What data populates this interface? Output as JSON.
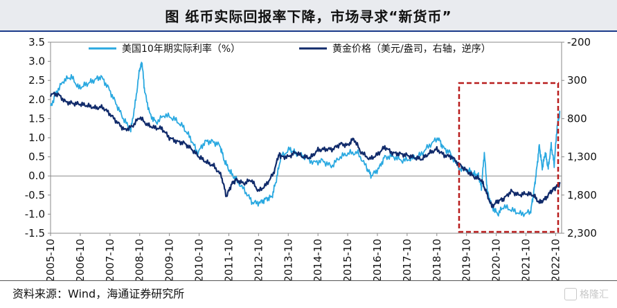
{
  "title": "图  纸币实际回报率下降，市场寻求“新货币”",
  "source": "资料来源：Wind，海通证券研究所",
  "watermark": "格隆汇",
  "colors": {
    "real_rate": "#29a8e0",
    "gold": "#102a6a",
    "box": "#b81c1c"
  },
  "chart_data": {
    "type": "line",
    "x_ticks": [
      "2005-10",
      "2006-10",
      "2007-10",
      "2008-10",
      "2009-10",
      "2010-10",
      "2011-10",
      "2012-10",
      "2013-10",
      "2014-10",
      "2015-10",
      "2016-10",
      "2017-10",
      "2018-10",
      "2019-10",
      "2020-10",
      "2021-10",
      "2022-10"
    ],
    "x_range": [
      2005.75,
      2022.95
    ],
    "y_left": {
      "ticks": [
        "3.5",
        "3.0",
        "2.5",
        "2.0",
        "1.5",
        "1.0",
        "0.5",
        "0.0",
        "-0.5",
        "-1.0",
        "-1.5"
      ],
      "range": [
        -1.5,
        3.5
      ]
    },
    "y_right": {
      "ticks": [
        "-200",
        "300",
        "800",
        "1,300",
        "1,800",
        "2,300"
      ],
      "range": [
        -200,
        2300
      ],
      "inverted": true
    },
    "highlight_box": {
      "x_from": "2019-07",
      "x_to": "2022-11"
    },
    "series": [
      {
        "name": "美国10年期实际利率（%）",
        "axis": "left",
        "x": [
          2005.75,
          2005.95,
          2006.2,
          2006.45,
          2006.7,
          2006.95,
          2007.2,
          2007.45,
          2007.7,
          2007.95,
          2008.2,
          2008.45,
          2008.6,
          2008.75,
          2008.83,
          2008.92,
          2009.1,
          2009.3,
          2009.6,
          2009.9,
          2010.2,
          2010.45,
          2010.7,
          2010.95,
          2011.2,
          2011.45,
          2011.6,
          2011.8,
          2012.0,
          2012.3,
          2012.55,
          2012.8,
          2013.0,
          2013.2,
          2013.35,
          2013.5,
          2013.8,
          2014.0,
          2014.3,
          2014.6,
          2014.9,
          2015.2,
          2015.5,
          2015.8,
          2016.1,
          2016.4,
          2016.55,
          2016.8,
          2017.0,
          2017.3,
          2017.6,
          2017.9,
          2018.2,
          2018.5,
          2018.8,
          2018.95,
          2019.2,
          2019.5,
          2019.8,
          2020.0,
          2020.15,
          2020.25,
          2020.35,
          2020.45,
          2020.6,
          2020.8,
          2021.0,
          2021.3,
          2021.6,
          2021.9,
          2022.0,
          2022.1,
          2022.2,
          2022.3,
          2022.4,
          2022.5,
          2022.6,
          2022.7,
          2022.8,
          2022.9
        ],
        "y": [
          1.8,
          2.2,
          2.5,
          2.6,
          2.3,
          2.4,
          2.5,
          2.6,
          2.3,
          1.9,
          1.5,
          1.2,
          1.9,
          2.8,
          2.95,
          2.2,
          1.6,
          1.4,
          1.6,
          1.5,
          1.3,
          1.0,
          0.6,
          0.9,
          0.9,
          0.8,
          0.4,
          0.1,
          -0.1,
          -0.4,
          -0.7,
          -0.7,
          -0.6,
          -0.55,
          -0.1,
          0.5,
          0.7,
          0.6,
          0.5,
          0.35,
          0.4,
          0.25,
          0.5,
          0.6,
          0.6,
          0.2,
          0.0,
          0.2,
          0.5,
          0.5,
          0.4,
          0.45,
          0.55,
          0.8,
          1.0,
          0.75,
          0.6,
          0.2,
          0.15,
          0.05,
          0.0,
          -0.3,
          0.6,
          -0.4,
          -0.8,
          -1.0,
          -0.8,
          -0.9,
          -1.0,
          -0.95,
          -0.5,
          0.1,
          0.8,
          0.2,
          0.6,
          0.2,
          0.8,
          0.3,
          1.3,
          1.7
        ]
      },
      {
        "name": "黄金价格（美元/盎司，右轴，逆序）",
        "axis": "right",
        "x": [
          2005.75,
          2006.0,
          2006.25,
          2006.5,
          2006.75,
          2007.0,
          2007.25,
          2007.5,
          2007.75,
          2008.0,
          2008.25,
          2008.5,
          2008.75,
          2009.0,
          2009.25,
          2009.5,
          2009.75,
          2010.0,
          2010.25,
          2010.5,
          2010.75,
          2011.0,
          2011.25,
          2011.5,
          2011.67,
          2011.85,
          2012.0,
          2012.25,
          2012.5,
          2012.75,
          2013.0,
          2013.25,
          2013.45,
          2013.5,
          2013.75,
          2014.0,
          2014.25,
          2014.5,
          2014.75,
          2015.0,
          2015.25,
          2015.5,
          2015.75,
          2015.95,
          2016.2,
          2016.5,
          2016.75,
          2017.0,
          2017.25,
          2017.5,
          2017.75,
          2018.0,
          2018.25,
          2018.5,
          2018.75,
          2019.0,
          2019.25,
          2019.5,
          2019.75,
          2020.0,
          2020.25,
          2020.4,
          2020.6,
          2020.8,
          2021.0,
          2021.25,
          2021.5,
          2021.75,
          2022.0,
          2022.2,
          2022.4,
          2022.6,
          2022.75,
          2022.9
        ],
        "y": [
          480,
          480,
          580,
          600,
          610,
          630,
          660,
          650,
          740,
          850,
          950,
          900,
          780,
          880,
          920,
          930,
          1050,
          1100,
          1120,
          1200,
          1300,
          1370,
          1420,
          1550,
          1820,
          1650,
          1600,
          1650,
          1600,
          1750,
          1670,
          1520,
          1250,
          1300,
          1300,
          1240,
          1300,
          1310,
          1210,
          1200,
          1200,
          1130,
          1150,
          1060,
          1240,
          1330,
          1270,
          1170,
          1250,
          1260,
          1280,
          1310,
          1330,
          1250,
          1200,
          1280,
          1300,
          1400,
          1480,
          1560,
          1600,
          1750,
          1950,
          1880,
          1850,
          1750,
          1800,
          1780,
          1800,
          1900,
          1850,
          1750,
          1700,
          1650
        ]
      }
    ]
  }
}
